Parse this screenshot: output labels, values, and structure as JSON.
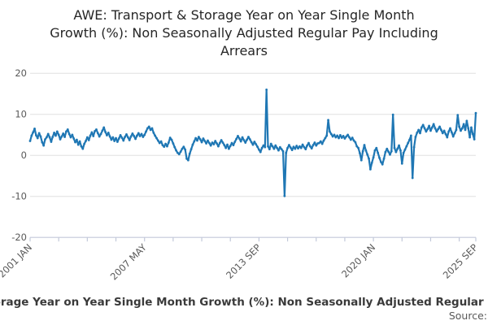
{
  "page": {
    "title": "AWE: Transport & Storage Year on Year Single Month\nGrowth (%): Non Seasonally Adjusted Regular Pay Including\nArrears",
    "legend_label": "AWE: Transport & Storage Year on Year Single Month Growth (%): Non Seasonally Adjusted Regular Pay Including Arrears",
    "source_label": "Source:"
  },
  "colors": {
    "line": "#1f77b4",
    "grid": "#e0e0e0",
    "axis": "#c3c9da",
    "tick_text": "#595959",
    "title_text": "#262626",
    "legend_text": "#3a3a3a",
    "background": "#ffffff"
  },
  "chart_data": {
    "type": "line",
    "title": "AWE: Transport & Storage Year on Year Single Month Growth (%): Non Seasonally Adjusted Regular Pay Including Arrears",
    "series_name": "AWE: Transport & Storage Year on Year Single Month Growth (%): Non Seasonally Adjusted Regular Pay Including Arrears",
    "xlabel": "",
    "ylabel": "",
    "frequency": "monthly",
    "x_start": "2001 JAN",
    "x_end": "2025 SEP",
    "x_tick_labels": [
      "2001 JAN",
      "2007 MAY",
      "2013 SEP",
      "2020 JAN",
      "2025 SEP"
    ],
    "x_tick_months": [
      0,
      76,
      152,
      228,
      296
    ],
    "minor_tick_interval_months": 19,
    "ylim": [
      -20,
      20
    ],
    "yticks": [
      20,
      10,
      0,
      -10,
      -20
    ],
    "grid": "horizontal",
    "legend_position": "bottom",
    "values": [
      3.5,
      4.8,
      5.6,
      6.5,
      4.9,
      4.2,
      5.4,
      4.6,
      3.2,
      2.4,
      3.9,
      4.4,
      5.2,
      4.4,
      3.3,
      4.5,
      5.5,
      4.8,
      5.8,
      5.0,
      3.9,
      4.6,
      5.3,
      4.5,
      5.8,
      6.3,
      5.2,
      4.4,
      5.0,
      4.1,
      3.2,
      3.8,
      2.6,
      3.4,
      2.2,
      1.6,
      2.8,
      3.5,
      4.4,
      3.7,
      4.8,
      5.6,
      4.7,
      5.9,
      6.3,
      5.4,
      4.6,
      5.2,
      6.0,
      6.8,
      5.7,
      4.9,
      5.5,
      4.6,
      3.8,
      4.4,
      3.5,
      4.2,
      3.3,
      4.1,
      4.9,
      4.3,
      3.6,
      4.5,
      5.1,
      4.4,
      3.7,
      4.6,
      5.3,
      4.7,
      4.0,
      4.8,
      5.4,
      4.7,
      5.2,
      4.5,
      5.0,
      5.8,
      6.6,
      7.0,
      6.2,
      6.6,
      5.5,
      4.8,
      4.2,
      3.6,
      3.0,
      3.4,
      2.5,
      2.1,
      2.8,
      2.2,
      3.1,
      4.3,
      3.8,
      2.9,
      2.0,
      1.2,
      0.6,
      0.3,
      0.9,
      1.6,
      2.1,
      1.4,
      -0.8,
      -1.2,
      0.4,
      1.5,
      2.6,
      3.4,
      4.2,
      3.6,
      4.5,
      3.9,
      3.2,
      4.1,
      3.5,
      2.9,
      3.6,
      3.0,
      2.4,
      3.1,
      2.7,
      3.5,
      2.9,
      2.2,
      3.0,
      3.7,
      3.1,
      2.5,
      1.8,
      2.6,
      1.6,
      2.3,
      3.0,
      2.5,
      3.3,
      4.0,
      4.7,
      4.1,
      3.4,
      4.4,
      3.7,
      3.1,
      3.8,
      4.5,
      3.9,
      3.2,
      2.6,
      3.3,
      2.7,
      2.1,
      1.4,
      0.8,
      1.8,
      2.4,
      2.0,
      16.0,
      2.2,
      1.5,
      2.8,
      2.2,
      1.6,
      2.4,
      1.8,
      1.2,
      2.0,
      1.5,
      1.0,
      -9.9,
      0.6,
      1.8,
      2.5,
      1.9,
      1.3,
      2.1,
      1.6,
      2.3,
      1.7,
      2.2,
      1.8,
      2.6,
      2.0,
      1.5,
      2.4,
      3.0,
      2.2,
      1.7,
      2.5,
      3.1,
      2.4,
      2.9,
      3.0,
      3.4,
      2.8,
      3.6,
      4.2,
      4.8,
      8.6,
      5.8,
      5.2,
      4.6,
      5.0,
      4.4,
      4.8,
      4.2,
      4.9,
      4.3,
      4.7,
      4.1,
      4.6,
      5.0,
      4.4,
      3.8,
      4.3,
      3.6,
      3.2,
      2.2,
      1.8,
      0.5,
      -1.2,
      1.0,
      2.5,
      1.2,
      0.2,
      -0.8,
      -3.4,
      -1.8,
      -0.5,
      1.2,
      1.8,
      0.6,
      -0.6,
      -1.6,
      -2.2,
      -0.8,
      0.8,
      1.6,
      0.9,
      0.2,
      1.0,
      9.9,
      1.8,
      0.8,
      1.6,
      2.4,
      1.2,
      -2.0,
      0.6,
      1.4,
      2.2,
      3.0,
      3.8,
      4.8,
      -5.5,
      2.0,
      4.5,
      5.5,
      6.2,
      5.4,
      6.8,
      7.4,
      6.6,
      5.8,
      6.4,
      7.2,
      6.0,
      6.8,
      7.6,
      6.6,
      5.8,
      6.4,
      7.0,
      6.2,
      5.4,
      6.0,
      5.2,
      4.4,
      5.8,
      6.6,
      5.6,
      4.6,
      5.4,
      6.2,
      9.8,
      7.0,
      6.0,
      6.6,
      7.6,
      6.2,
      8.4,
      6.6,
      4.4,
      6.8,
      5.2,
      3.9,
      10.3
    ]
  }
}
